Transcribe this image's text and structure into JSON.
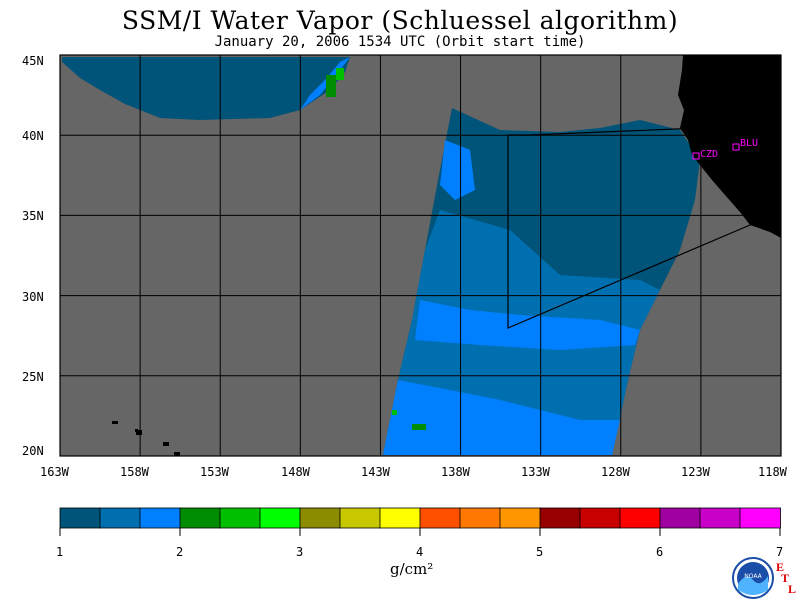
{
  "title": "SSM/I Water Vapor (Schluessel algorithm)",
  "subtitle": "January 20, 2006  1534 UTC  (Orbit start time)",
  "map": {
    "lat_labels": [
      "45N",
      "40N",
      "35N",
      "30N",
      "25N",
      "20N"
    ],
    "lon_labels": [
      "163W",
      "158W",
      "153W",
      "148W",
      "143W",
      "138W",
      "133W",
      "128W",
      "123W",
      "118W"
    ],
    "stations": [
      {
        "id": "CZD",
        "label": "CZD"
      },
      {
        "id": "BLU",
        "label": "BLU"
      }
    ],
    "colors": {
      "background_no_data": "#666666",
      "land": "#000000",
      "grid": "#000000",
      "station_marker": "#ff00ff"
    }
  },
  "colorbar": {
    "colors": [
      "#005479",
      "#006fb0",
      "#0080ff",
      "#008c00",
      "#00be00",
      "#00ff00",
      "#8c8c00",
      "#c8c800",
      "#ffff00",
      "#ff5000",
      "#ff7800",
      "#ff9600",
      "#960000",
      "#c80000",
      "#ff0000",
      "#a000a0",
      "#c800c8",
      "#ff00ff"
    ],
    "tick_labels": [
      "1",
      "2",
      "3",
      "4",
      "5",
      "6",
      "7"
    ],
    "unit": "g/cm²"
  },
  "logo": {
    "text": "NOAA",
    "etl_letters": [
      "E",
      "T",
      "L"
    ]
  }
}
